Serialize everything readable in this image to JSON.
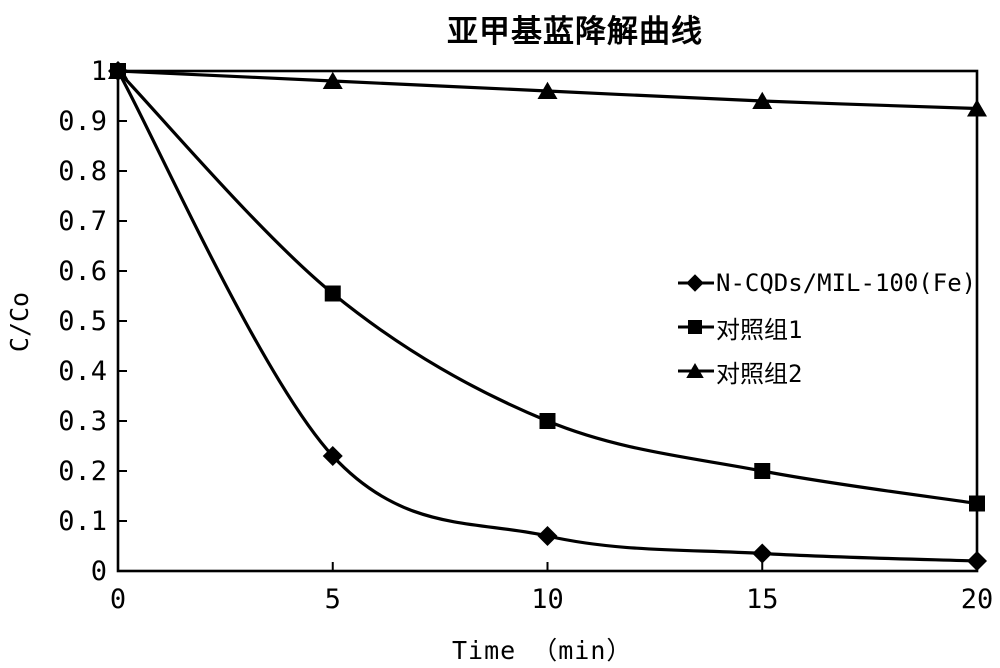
{
  "figure": {
    "background_color": "#ffffff",
    "foreground_color": "#000000"
  },
  "chart_data": {
    "type": "line",
    "title": "亚甲基蓝降解曲线",
    "xlabel": "Time （min）",
    "ylabel": "C/Co",
    "x": [
      0,
      5,
      10,
      15,
      20
    ],
    "xlim": [
      0,
      20
    ],
    "ylim": [
      0,
      1
    ],
    "xticks": [
      0,
      5,
      10,
      15,
      20
    ],
    "xtick_labels": [
      "0",
      "5",
      "10",
      "15",
      "20"
    ],
    "ytick_step": 0.1,
    "ytick_labels": [
      "0",
      "0.1",
      "0.2",
      "0.3",
      "0.4",
      "0.5",
      "0.6",
      "0.7",
      "0.8",
      "0.9",
      "1"
    ],
    "grid": false,
    "smooth": true,
    "line_color": "#000000",
    "legend_position": "inside-middle-right",
    "series": [
      {
        "name": "N-CQDs/MIL-100(Fe)",
        "marker": "diamond",
        "values": [
          1,
          0.23,
          0.07,
          0.035,
          0.02
        ]
      },
      {
        "name": "对照组1",
        "marker": "square",
        "values": [
          1,
          0.555,
          0.3,
          0.2,
          0.135
        ]
      },
      {
        "name": "对照组2",
        "marker": "triangle",
        "values": [
          1,
          0.98,
          0.96,
          0.94,
          0.925
        ]
      }
    ]
  }
}
